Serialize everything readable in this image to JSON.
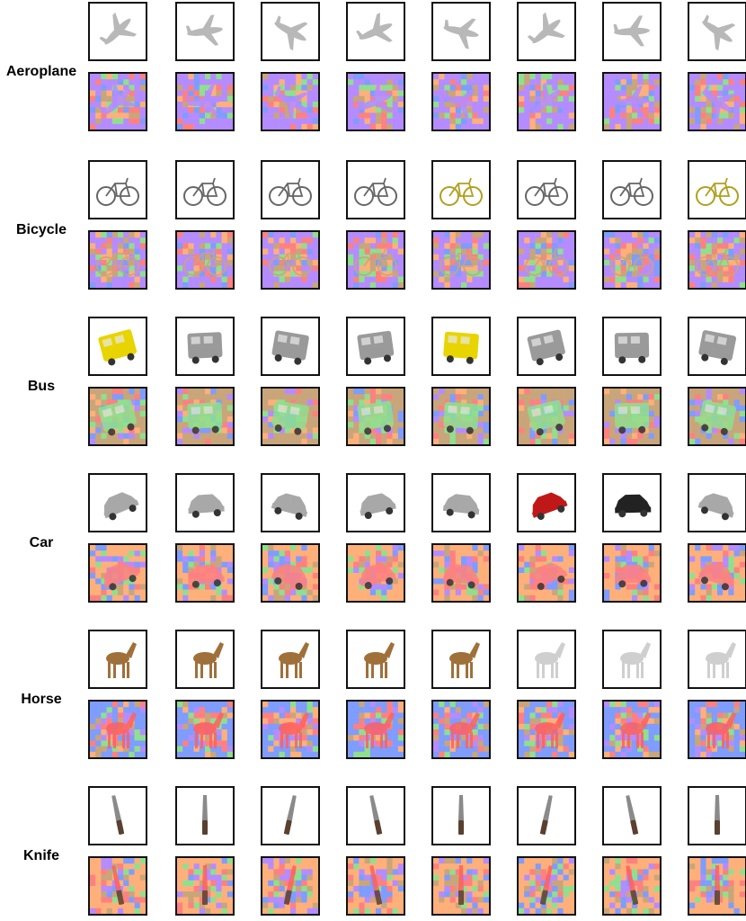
{
  "categories": [
    {
      "label": "Aeroplane",
      "icon": "aeroplane-icon",
      "base": "#b8b8b8",
      "tint": "#ffffff",
      "palette": [
        "#b58cff",
        "#ffb07a",
        "#8ee08e",
        "#7f9cff",
        "#ff8080",
        "#c9a57a"
      ]
    },
    {
      "label": "Bicycle",
      "icon": "bicycle-icon",
      "base": "#666666",
      "tint": "#ffffff",
      "palette": [
        "#b58cff",
        "#8ee08e",
        "#ffb07a",
        "#ff8080",
        "#c9a57a",
        "#7f9cff"
      ]
    },
    {
      "label": "Bus",
      "icon": "bus-icon",
      "base": "#9a9a9a",
      "tint": "#ffffff",
      "palette": [
        "#c9a57a",
        "#b58cff",
        "#8ee08e",
        "#ffb07a",
        "#7f9cff",
        "#ff8080"
      ]
    },
    {
      "label": "Car",
      "icon": "car-icon",
      "base": "#a8a8a8",
      "tint": "#ffffff",
      "palette": [
        "#ffb07a",
        "#b58cff",
        "#ff8080",
        "#7f9cff",
        "#8ee08e",
        "#c9a57a"
      ]
    },
    {
      "label": "Horse",
      "icon": "horse-icon",
      "base": "#a0703a",
      "tint": "#ffffff",
      "palette": [
        "#7f9cff",
        "#ffb07a",
        "#8ee08e",
        "#ff8080",
        "#b58cff",
        "#c9a57a"
      ]
    },
    {
      "label": "Knife",
      "icon": "knife-icon",
      "base": "#8a8a8a",
      "tint": "#ffffff",
      "palette": [
        "#ffb07a",
        "#c9a57a",
        "#7f9cff",
        "#8ee08e",
        "#ff8080",
        "#b58cff"
      ]
    }
  ],
  "colors": {
    "aeroplane_seg": "#b58cff",
    "bicycle_seg": "#c9a57a",
    "bus_seg": "#8ee08e",
    "car_seg": "#ff8080",
    "horse_seg": "#ff6060",
    "knife_seg": "#ff6060",
    "bus_yellow": "#e8d400",
    "car_red": "#c01818",
    "horse_brown": "#8b5a2b"
  }
}
